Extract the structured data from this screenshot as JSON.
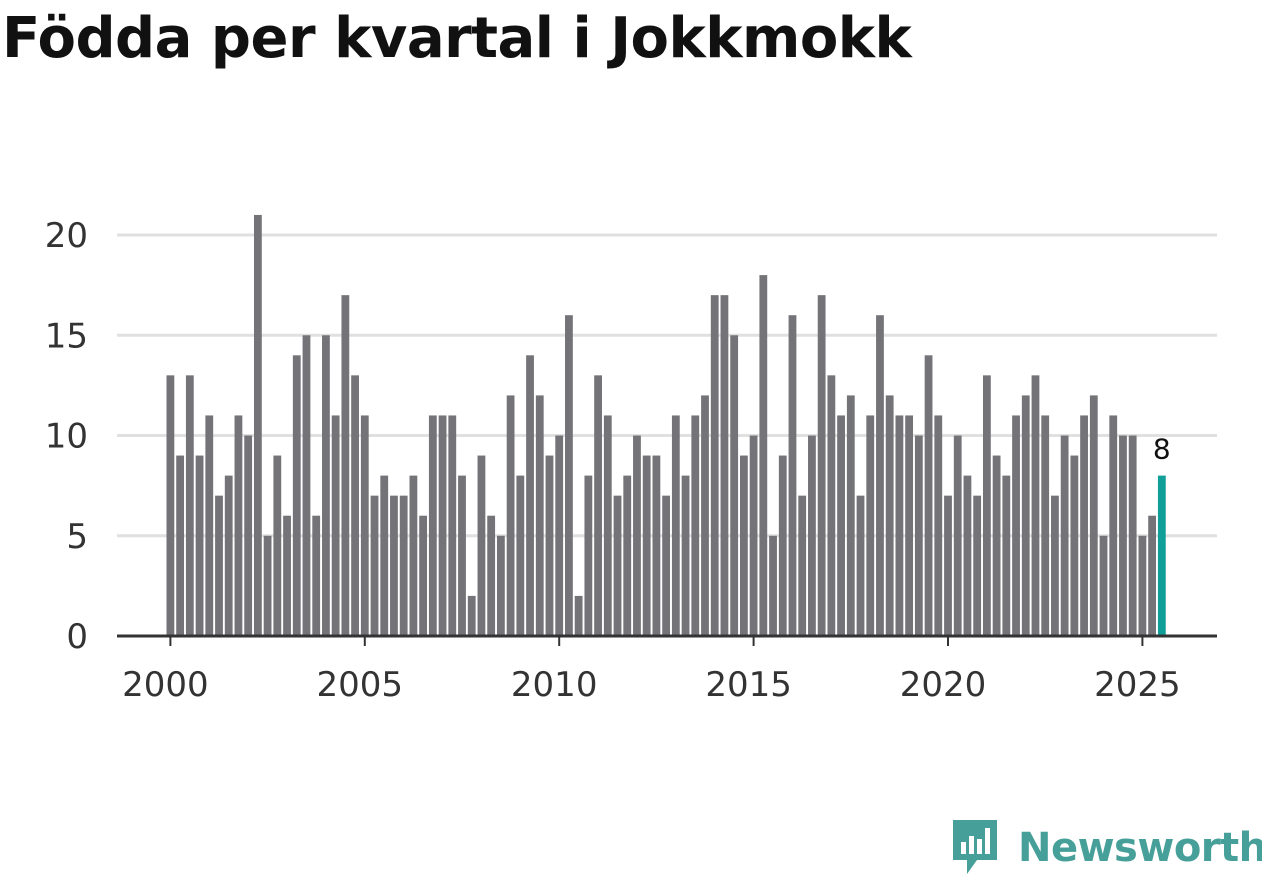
{
  "title": "Födda per kvartal i Jokkmokk",
  "brand": "Newsworthy",
  "colors": {
    "bar": "#747378",
    "highlight": "#0f9e98",
    "grid": "#e0e0e0",
    "axis": "#333333",
    "brand": "#46a099"
  },
  "chart_data": {
    "type": "bar",
    "title": "Födda per kvartal i Jokkmokk",
    "xlabel": "",
    "ylabel": "",
    "x_start": "2000 Q1",
    "x_ticks": [
      "2000",
      "2005",
      "2010",
      "2015",
      "2020",
      "2025"
    ],
    "y_ticks": [
      "0",
      "5",
      "10",
      "15",
      "20"
    ],
    "ylim": [
      0,
      21
    ],
    "grid": true,
    "values": [
      13,
      9,
      13,
      9,
      11,
      7,
      8,
      11,
      10,
      21,
      5,
      9,
      6,
      14,
      15,
      6,
      15,
      11,
      17,
      13,
      11,
      7,
      8,
      7,
      7,
      8,
      6,
      11,
      11,
      11,
      8,
      2,
      9,
      6,
      5,
      12,
      8,
      14,
      12,
      9,
      10,
      16,
      2,
      8,
      13,
      11,
      7,
      8,
      10,
      9,
      9,
      7,
      11,
      8,
      11,
      12,
      17,
      17,
      15,
      9,
      10,
      18,
      5,
      9,
      16,
      7,
      10,
      17,
      13,
      11,
      12,
      7,
      11,
      16,
      12,
      11,
      11,
      10,
      14,
      11,
      7,
      10,
      8,
      7,
      13,
      9,
      8,
      11,
      12,
      13,
      11,
      7,
      10,
      9,
      11,
      12,
      5,
      11,
      10,
      10,
      5,
      6,
      8
    ],
    "highlight_index": 102,
    "highlight_label": "8"
  }
}
